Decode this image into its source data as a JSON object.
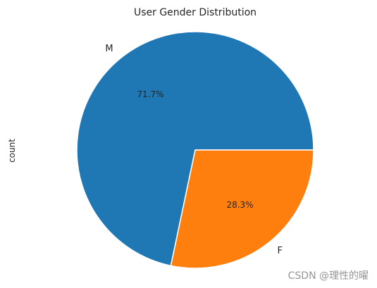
{
  "chart_data": {
    "type": "pie",
    "title": "User Gender Distribution",
    "ylabel": "count",
    "xlabel": "",
    "slices": [
      {
        "label": "M",
        "percent": 71.7,
        "pct_text": "71.7%",
        "color": "#1f77b4"
      },
      {
        "label": "F",
        "percent": 28.3,
        "pct_text": "28.3%",
        "color": "#ff7f0e"
      }
    ],
    "start_angle_deg": 0,
    "direction": "counterclockwise",
    "legend": "none",
    "grid": false
  },
  "watermark": {
    "text": "CSDN @理性的曜"
  }
}
